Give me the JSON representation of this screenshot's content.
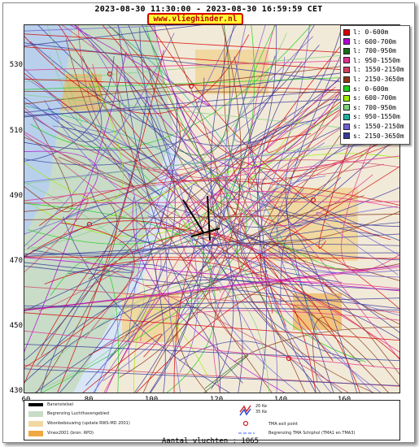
{
  "title": "2023-08-30 11:30:00 - 2023-08-30 16:59:59 CET",
  "site": "www.vlieghinder.nl",
  "axis": {
    "y_ticks": [
      "530",
      "510",
      "490",
      "470",
      "450",
      "430"
    ],
    "x_ticks": [
      "60",
      "80",
      "100",
      "120",
      "140",
      "160"
    ]
  },
  "legend": [
    {
      "label": "l: 0-600m",
      "color": "#d40000"
    },
    {
      "label": "l: 600-700m",
      "color": "#b000d0"
    },
    {
      "label": "l: 700-950m",
      "color": "#1a6a1a"
    },
    {
      "label": "l: 950-1550m",
      "color": "#e03090"
    },
    {
      "label": "l: 1550-2150m",
      "color": "#d04060"
    },
    {
      "label": "l: 2150-3650m",
      "color": "#8a3a1a"
    },
    {
      "label": "s: 0-600m",
      "color": "#20d020"
    },
    {
      "label": "s: 600-700m",
      "color": "#a0f000"
    },
    {
      "label": "s: 700-950m",
      "color": "#80d080"
    },
    {
      "label": "s: 950-1550m",
      "color": "#20b0a0"
    },
    {
      "label": "s: 1550-2150m",
      "color": "#7060d0"
    },
    {
      "label": "s: 2150-3650m",
      "color": "#3a3a9a"
    }
  ],
  "map_legend": [
    {
      "label": "Banenstelsel",
      "color": "#000000"
    },
    {
      "label": "Begrenzing Luchthavengebied",
      "color": "#c8dcc8"
    },
    {
      "label": "Woonbebouwing (update RWS-MD 2001)",
      "color": "#f0d8a0"
    },
    {
      "label": "Vinex2001 (bron: RPD)",
      "color": "#f0a840"
    },
    {
      "label": "20 Ke",
      "color": "#d02020"
    },
    {
      "label": "35 Ke",
      "color": "#2040d0"
    },
    {
      "label": "TMA exit point",
      "color": "#d02020"
    },
    {
      "label": "Begrenzing TMA Schiphol  (TMA1 en TMA3)",
      "color": "#6080ff"
    }
  ],
  "footer": "Aantal vluchten : 1065"
}
